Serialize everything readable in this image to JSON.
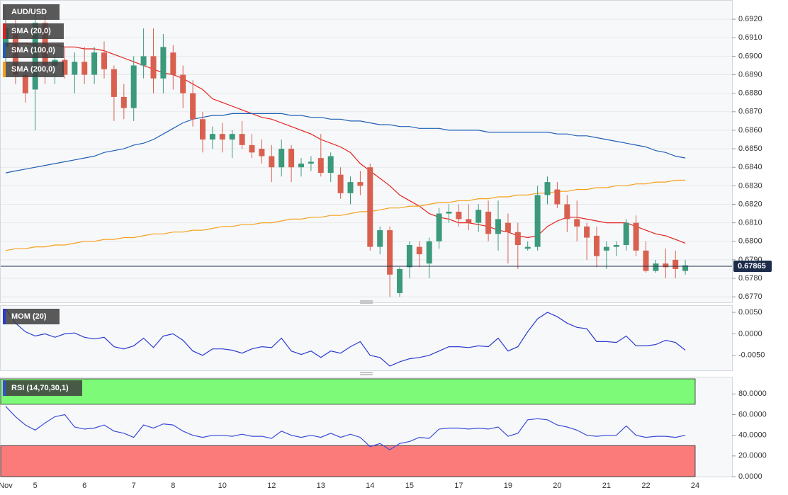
{
  "chart_data": [
    {
      "type": "candlestick",
      "name": "AUD/USD",
      "up_color": "#3b9a7c",
      "down_color": "#d9604f",
      "legend_color": "#555555",
      "open": [
        0.6905,
        0.6915,
        0.689,
        0.6882,
        0.6918,
        0.6895,
        0.6898,
        0.689,
        0.6897,
        0.689,
        0.6902,
        0.6893,
        0.6878,
        0.6872,
        0.6895,
        0.69,
        0.6888,
        0.6902,
        0.689,
        0.688,
        0.6866,
        0.6855,
        0.6858,
        0.6855,
        0.6858,
        0.6852,
        0.685,
        0.6846,
        0.684,
        0.685,
        0.684,
        0.6842,
        0.6845,
        0.6837,
        0.6836,
        0.6826,
        0.6832,
        0.684,
        0.6797,
        0.6806,
        0.6772,
        0.6786,
        0.6797,
        0.6788,
        0.68,
        0.6815,
        0.6816,
        0.6812,
        0.681,
        0.6816,
        0.6804,
        0.681,
        0.6805,
        0.6796,
        0.6797,
        0.6825,
        0.6828,
        0.682,
        0.6812,
        0.6808,
        0.6803,
        0.6795,
        0.6797,
        0.6798,
        0.681,
        0.6795,
        0.6784,
        0.6788,
        0.679,
        0.6784,
        null
      ],
      "high": [
        0.6925,
        0.692,
        0.6895,
        0.6925,
        0.6922,
        0.6905,
        0.6905,
        0.6902,
        0.6905,
        0.6905,
        0.6908,
        0.6895,
        0.6885,
        0.69,
        0.6915,
        0.6915,
        0.6912,
        0.6906,
        0.6895,
        0.6887,
        0.687,
        0.6862,
        0.6864,
        0.686,
        0.6865,
        0.6858,
        0.6855,
        0.6852,
        0.6855,
        0.6852,
        0.6845,
        0.6846,
        0.6858,
        0.6848,
        0.684,
        0.6835,
        0.6838,
        0.6842,
        0.6808,
        0.6808,
        0.6786,
        0.68,
        0.68,
        0.6802,
        0.6818,
        0.682,
        0.682,
        0.682,
        0.682,
        0.6822,
        0.6822,
        0.6815,
        0.681,
        0.68,
        0.683,
        0.6835,
        0.6832,
        0.6825,
        0.6822,
        0.681,
        0.6808,
        0.68,
        0.68,
        0.6812,
        0.6814,
        0.68,
        0.679,
        0.6796,
        0.6795,
        0.679,
        null
      ],
      "low": [
        0.6895,
        0.6885,
        0.6875,
        0.686,
        0.6885,
        0.6885,
        0.6888,
        0.688,
        0.6885,
        0.6885,
        0.6888,
        0.6865,
        0.6866,
        0.6865,
        0.6888,
        0.688,
        0.688,
        0.6882,
        0.6872,
        0.6862,
        0.6848,
        0.685,
        0.6848,
        0.6845,
        0.685,
        0.6845,
        0.6842,
        0.6832,
        0.6835,
        0.6832,
        0.6835,
        0.6838,
        0.6835,
        0.6832,
        0.6823,
        0.682,
        0.6825,
        0.6795,
        0.6793,
        0.677,
        0.677,
        0.678,
        0.6786,
        0.678,
        0.6796,
        0.681,
        0.6808,
        0.6806,
        0.6805,
        0.68,
        0.6795,
        0.6788,
        0.6785,
        0.6795,
        0.6795,
        0.682,
        0.6818,
        0.6805,
        0.68,
        0.679,
        0.6786,
        0.6785,
        0.6792,
        0.6795,
        0.6792,
        0.6783,
        0.6783,
        0.678,
        0.678,
        0.6782,
        null
      ],
      "close": [
        0.6915,
        0.689,
        0.688,
        0.6918,
        0.6895,
        0.6898,
        0.689,
        0.6897,
        0.689,
        0.6902,
        0.6893,
        0.6878,
        0.6872,
        0.6895,
        0.69,
        0.6888,
        0.6905,
        0.689,
        0.688,
        0.6866,
        0.6855,
        0.6858,
        0.6855,
        0.6858,
        0.6852,
        0.6848,
        0.6846,
        0.684,
        0.685,
        0.684,
        0.6842,
        0.6843,
        0.6837,
        0.6846,
        0.6826,
        0.6832,
        0.683,
        0.6797,
        0.6806,
        0.6782,
        0.6785,
        0.6798,
        0.6793,
        0.68,
        0.6815,
        0.6816,
        0.6812,
        0.681,
        0.6817,
        0.6804,
        0.6812,
        0.6805,
        0.6798,
        0.6797,
        0.6825,
        0.6832,
        0.682,
        0.6812,
        0.6808,
        0.6802,
        0.6792,
        0.6797,
        0.6798,
        0.681,
        0.6795,
        0.6784,
        0.6788,
        0.6786,
        0.6785,
        0.6787,
        null
      ],
      "series": [
        {
          "name": "SMA (20,0)",
          "color": "#e3211c",
          "values": [
            0.6907,
            0.6907,
            0.6907,
            0.6906,
            0.6906,
            0.6906,
            0.6905,
            0.6905,
            0.6904,
            0.6904,
            0.6903,
            0.6901,
            0.6899,
            0.6897,
            0.6895,
            0.6893,
            0.6891,
            0.689,
            0.6888,
            0.6885,
            0.6882,
            0.6877,
            0.6875,
            0.6873,
            0.6871,
            0.6869,
            0.6867,
            0.6866,
            0.6864,
            0.6862,
            0.686,
            0.6858,
            0.6855,
            0.6853,
            0.6851,
            0.6848,
            0.6842,
            0.6838,
            0.6834,
            0.683,
            0.6825,
            0.6822,
            0.6819,
            0.6815,
            0.6813,
            0.6812,
            0.681,
            0.681,
            0.6809,
            0.6808,
            0.6806,
            0.6805,
            0.6803,
            0.6802,
            0.6803,
            0.6808,
            0.6811,
            0.6813,
            0.6813,
            0.6812,
            0.6811,
            0.681,
            0.681,
            0.681,
            0.6808,
            0.6806,
            0.6804,
            0.6803,
            0.6801,
            0.6799,
            null
          ]
        },
        {
          "name": "SMA (100,0)",
          "color": "#1f5fb4",
          "values": [
            0.6837,
            0.6838,
            0.6839,
            0.684,
            0.6841,
            0.6842,
            0.6843,
            0.6844,
            0.6845,
            0.6846,
            0.6848,
            0.6849,
            0.685,
            0.6852,
            0.6853,
            0.6855,
            0.6858,
            0.6861,
            0.6864,
            0.6866,
            0.6867,
            0.6868,
            0.6868,
            0.6869,
            0.6869,
            0.6869,
            0.6869,
            0.6869,
            0.6869,
            0.6868,
            0.6868,
            0.6867,
            0.6867,
            0.6866,
            0.6866,
            0.6865,
            0.6865,
            0.6864,
            0.6863,
            0.6863,
            0.6862,
            0.6862,
            0.6861,
            0.6861,
            0.6861,
            0.686,
            0.686,
            0.686,
            0.686,
            0.6859,
            0.6859,
            0.6859,
            0.6859,
            0.6859,
            0.6859,
            0.6859,
            0.6858,
            0.6858,
            0.6857,
            0.6857,
            0.6856,
            0.6855,
            0.6854,
            0.6853,
            0.6852,
            0.6851,
            0.6849,
            0.6848,
            0.6846,
            0.6845,
            null
          ]
        },
        {
          "name": "SMA (200,0)",
          "color": "#f5a11c",
          "values": [
            0.6795,
            0.6796,
            0.6796,
            0.6797,
            0.6797,
            0.6798,
            0.6798,
            0.6799,
            0.68,
            0.68,
            0.6801,
            0.6801,
            0.6802,
            0.6802,
            0.6803,
            0.6804,
            0.6804,
            0.6805,
            0.6805,
            0.6806,
            0.6806,
            0.6807,
            0.6808,
            0.6808,
            0.6809,
            0.6809,
            0.681,
            0.681,
            0.6811,
            0.6812,
            0.6812,
            0.6813,
            0.6813,
            0.6814,
            0.6814,
            0.6815,
            0.6816,
            0.6816,
            0.6817,
            0.6818,
            0.6818,
            0.6819,
            0.6819,
            0.682,
            0.6821,
            0.6821,
            0.6822,
            0.6822,
            0.6823,
            0.6823,
            0.6824,
            0.6824,
            0.6825,
            0.6825,
            0.6826,
            0.6826,
            0.6827,
            0.6827,
            0.6828,
            0.6828,
            0.6829,
            0.6829,
            0.683,
            0.683,
            0.6831,
            0.6831,
            0.6832,
            0.6832,
            0.6833,
            0.6833,
            null
          ]
        }
      ],
      "last_price": 0.67865,
      "last_price_color": "#1c2b4a",
      "ylim": [
        0.6767,
        0.693
      ],
      "yticks": [
        {
          "value": 0.677,
          "label": "0.6770"
        },
        {
          "value": 0.678,
          "label": "0.6780"
        },
        {
          "value": 0.679,
          "label": "0.6790"
        },
        {
          "value": 0.68,
          "label": "0.6800"
        },
        {
          "value": 0.681,
          "label": "0.6810"
        },
        {
          "value": 0.682,
          "label": "0.6820"
        },
        {
          "value": 0.683,
          "label": "0.6830"
        },
        {
          "value": 0.684,
          "label": "0.6840"
        },
        {
          "value": 0.685,
          "label": "0.6850"
        },
        {
          "value": 0.686,
          "label": "0.6860"
        },
        {
          "value": 0.687,
          "label": "0.6870"
        },
        {
          "value": 0.688,
          "label": "0.6880"
        },
        {
          "value": 0.689,
          "label": "0.6890"
        },
        {
          "value": 0.69,
          "label": "0.6900"
        },
        {
          "value": 0.691,
          "label": "0.6910"
        },
        {
          "value": 0.692,
          "label": "0.6920"
        }
      ],
      "grid": true
    },
    {
      "type": "line",
      "series": [
        {
          "name": "MOM (20)",
          "color": "#2b3bd1",
          "values": [
            0.0058,
            0.0025,
            0.0005,
            -0.0005,
            0.0,
            -0.0008,
            0.0,
            0.0002,
            -0.0008,
            -0.0012,
            -0.0008,
            -0.003,
            -0.0035,
            -0.0028,
            -0.001,
            -0.0032,
            -0.0005,
            0.0,
            -0.0015,
            -0.004,
            -0.005,
            -0.0035,
            -0.0035,
            -0.0038,
            -0.0045,
            -0.0035,
            -0.003,
            -0.0032,
            -0.001,
            -0.004,
            -0.0048,
            -0.004,
            -0.0055,
            -0.004,
            -0.0045,
            -0.003,
            -0.0018,
            -0.005,
            -0.0055,
            -0.0075,
            -0.0065,
            -0.0058,
            -0.0055,
            -0.005,
            -0.004,
            -0.003,
            -0.003,
            -0.0032,
            -0.0028,
            -0.003,
            -0.001,
            -0.004,
            -0.003,
            0.0005,
            0.0035,
            0.005,
            0.004,
            0.0025,
            0.0015,
            0.0012,
            -0.0018,
            -0.0018,
            -0.002,
            -0.0005,
            -0.0028,
            -0.0028,
            -0.0025,
            -0.0015,
            -0.002,
            -0.0038,
            null
          ]
        }
      ],
      "ylim": [
        -0.0085,
        0.0065
      ],
      "yticks": [
        {
          "value": -0.005,
          "label": "-0.0050"
        },
        {
          "value": 0,
          "label": "0.0000"
        },
        {
          "value": 0.005,
          "label": "0.0050"
        }
      ],
      "grid": false
    },
    {
      "type": "line",
      "categories": [
        "Nov",
        null,
        null,
        "5",
        null,
        null,
        null,
        null,
        "6",
        null,
        null,
        null,
        null,
        "7",
        null,
        null,
        null,
        "8",
        null,
        null,
        null,
        null,
        "10",
        null,
        null,
        null,
        null,
        "12",
        null,
        null,
        null,
        null,
        "13",
        null,
        null,
        null,
        null,
        "14",
        null,
        null,
        null,
        "15",
        null,
        null,
        null,
        null,
        "17",
        null,
        null,
        null,
        null,
        "19",
        null,
        null,
        null,
        null,
        "20",
        null,
        null,
        null,
        null,
        "21",
        null,
        null,
        null,
        "22",
        null,
        null,
        null,
        null,
        "24"
      ],
      "series": [
        {
          "name": "RSI (14,70,30,1)",
          "color": "#3a4bd8",
          "values": [
            68,
            58,
            50,
            45,
            52,
            58,
            60,
            48,
            46,
            47,
            50,
            44,
            42,
            38,
            50,
            47,
            51,
            50,
            44,
            40,
            38,
            40,
            40,
            39,
            41,
            39,
            39,
            37,
            44,
            40,
            38,
            40,
            38,
            42,
            38,
            41,
            38,
            29,
            32,
            26,
            32,
            34,
            38,
            37,
            46,
            47,
            47,
            46,
            47,
            46,
            48,
            39,
            42,
            55,
            56,
            55,
            50,
            48,
            45,
            40,
            39,
            40,
            40,
            49,
            40,
            38,
            39,
            39,
            38,
            40,
            null
          ]
        }
      ],
      "overbought": 70,
      "oversold": 30,
      "overbought_color": "#7dfb78",
      "oversold_color": "#fb7b7b",
      "ylim": [
        0,
        96
      ],
      "yticks": [
        {
          "value": 0,
          "label": "0.0000"
        },
        {
          "value": 20,
          "label": "20.0000"
        },
        {
          "value": 40,
          "label": "40.0000"
        },
        {
          "value": 60,
          "label": "60.0000"
        },
        {
          "value": 80,
          "label": "80.0000"
        }
      ],
      "grid": false
    }
  ]
}
